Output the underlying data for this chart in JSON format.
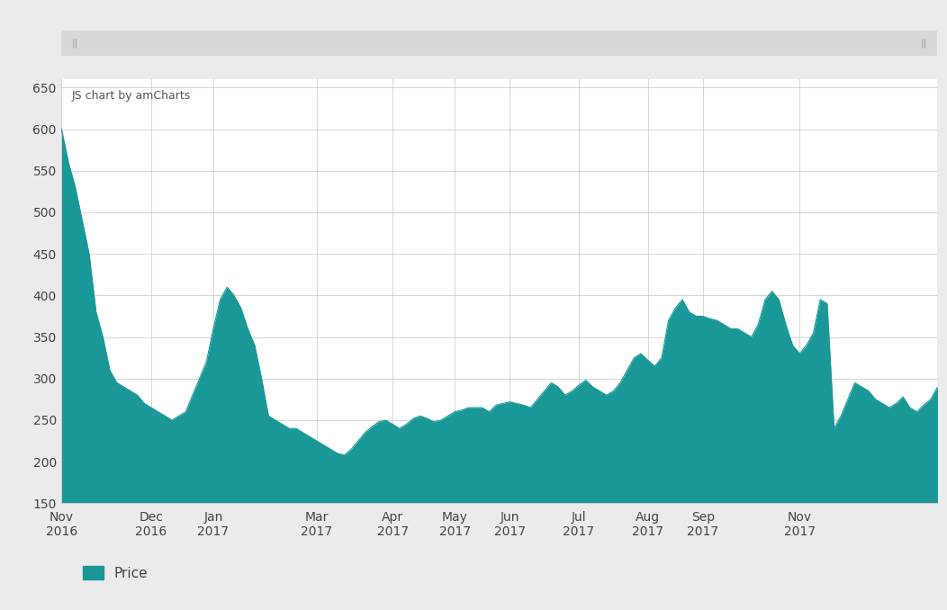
{
  "fill_color": "#1a9898",
  "line_color": "#1a9898",
  "bg_color": "#ffffff",
  "outer_bg_color": "#ebebeb",
  "grid_color": "#cccccc",
  "annotation_text": "JS chart by amCharts",
  "annotation_color": "#555555",
  "legend_label": "Price",
  "ylim": [
    150,
    660
  ],
  "yticks": [
    150,
    200,
    250,
    300,
    350,
    400,
    450,
    500,
    550,
    600,
    650
  ],
  "x_labels": [
    "Nov\n2016",
    "Dec\n2016",
    "Jan\n2017",
    "Mar\n2017",
    "Apr\n2017",
    "May\n2017",
    "Jun\n2017",
    "Jul\n2017",
    "Aug\n2017",
    "Sep\n2017",
    "Nov\n2017"
  ],
  "values": [
    600,
    560,
    530,
    490,
    450,
    380,
    350,
    310,
    295,
    290,
    285,
    280,
    270,
    265,
    260,
    255,
    250,
    255,
    260,
    280,
    300,
    320,
    360,
    395,
    410,
    400,
    385,
    360,
    340,
    300,
    255,
    250,
    245,
    240,
    240,
    235,
    230,
    225,
    220,
    215,
    210,
    208,
    215,
    225,
    235,
    242,
    248,
    250,
    245,
    240,
    245,
    252,
    255,
    252,
    248,
    250,
    255,
    260,
    262,
    265,
    265,
    265,
    260,
    268,
    270,
    272,
    270,
    268,
    265,
    275,
    285,
    295,
    290,
    280,
    285,
    292,
    298,
    290,
    285,
    280,
    285,
    295,
    310,
    325,
    330,
    322,
    315,
    325,
    370,
    385,
    395,
    380,
    375,
    375,
    372,
    370,
    365,
    360,
    360,
    355,
    350,
    365,
    395,
    405,
    395,
    365,
    340,
    330,
    340,
    355,
    395,
    390,
    240,
    255,
    275,
    295,
    290,
    285,
    275,
    270,
    265,
    270,
    278,
    265,
    260,
    268,
    275,
    290
  ],
  "x_tick_positions": [
    0,
    13,
    22,
    37,
    48,
    57,
    65,
    75,
    85,
    93,
    107
  ],
  "scrollbar_color": "#d8d8d8",
  "scrollbar_grip_color": "#999999"
}
